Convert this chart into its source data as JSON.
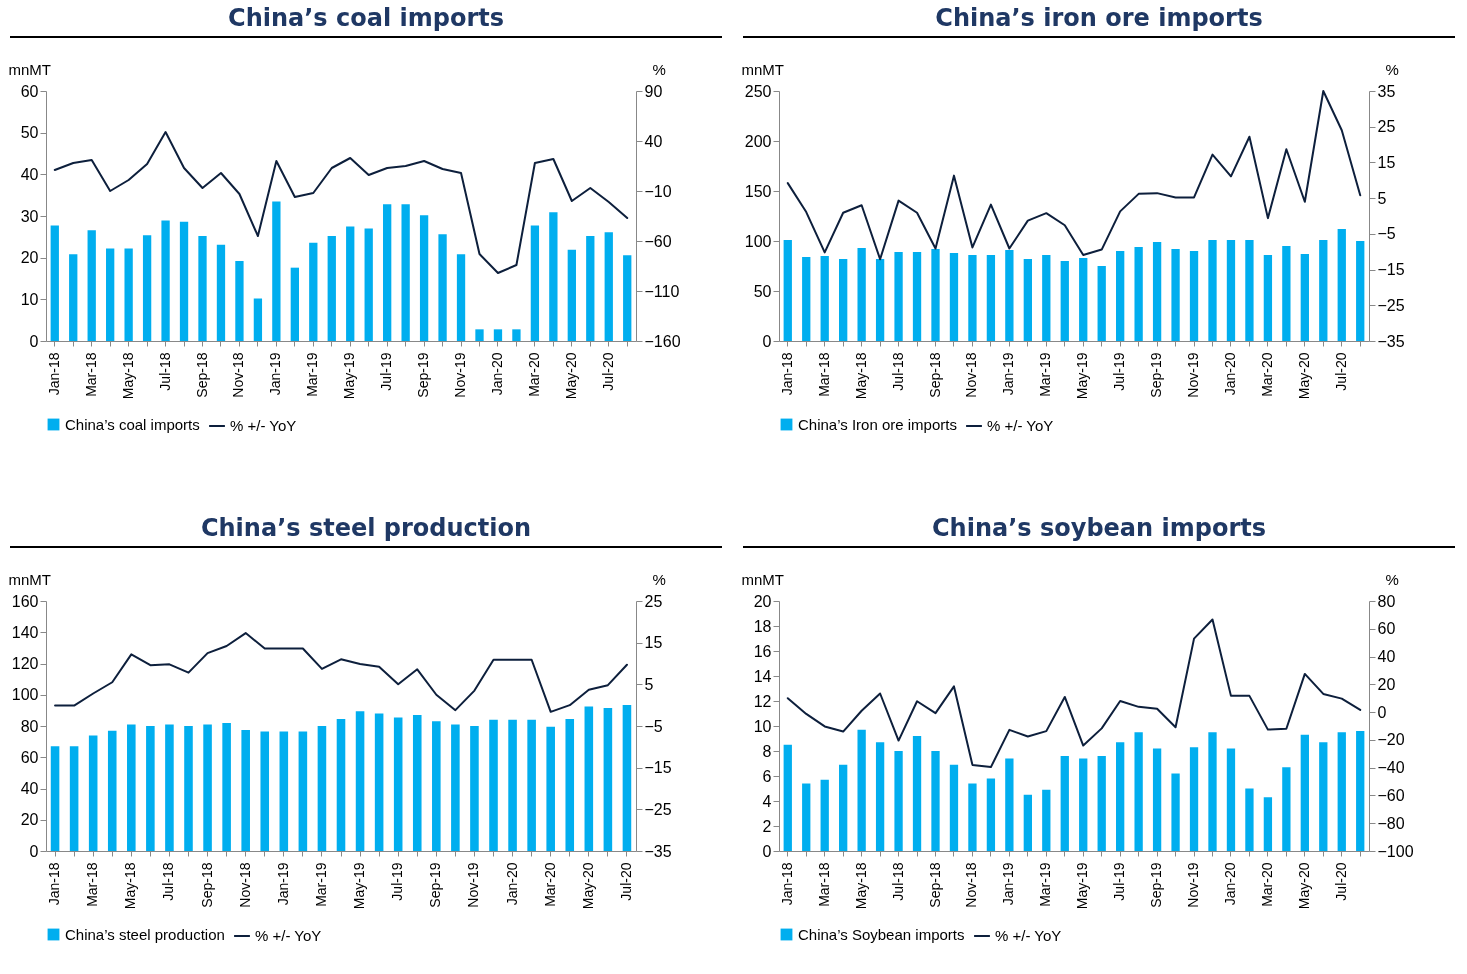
{
  "chart_data": [
    {
      "type": "bar",
      "title": "China’s coal imports",
      "ylabel": "mnMT",
      "y2label": "%",
      "legend": "bottom",
      "categories": [
        "Jan-18",
        null,
        "Mar-18",
        null,
        "May-18",
        null,
        "Jul-18",
        null,
        "Sep-18",
        null,
        "Nov-18",
        null,
        "Jan-19",
        null,
        "Mar-19",
        null,
        "May-19",
        null,
        "Jul-19",
        null,
        "Sep-19",
        null,
        "Nov-19",
        null,
        "Jan-20",
        null,
        "Mar-20",
        null,
        "May-20",
        null,
        "Jul-20",
        null
      ],
      "ylim": [
        0,
        60
      ],
      "yticks": [
        0,
        10,
        20,
        30,
        40,
        50,
        60
      ],
      "y2lim": [
        -160,
        90
      ],
      "y2ticks": [
        -160,
        -110,
        -60,
        -10,
        40,
        90
      ],
      "series": [
        {
          "name": "China’s coal imports",
          "color": "#00aeef",
          "values": [
            27.7,
            20.8,
            26.6,
            22.2,
            22.2,
            25.4,
            28.9,
            28.6,
            25.2,
            23.1,
            19.2,
            10.2,
            33.5,
            17.6,
            23.6,
            25.2,
            27.5,
            27.0,
            32.8,
            32.8,
            30.2,
            25.6,
            20.8,
            2.8,
            2.8,
            2.8,
            27.7,
            30.9,
            21.9,
            25.2,
            26.1,
            20.6
          ]
        },
        {
          "name": "% +/- YoY",
          "type": "line",
          "axis": "y2",
          "color": "#0d1f3c",
          "values": [
            11,
            18,
            21,
            -10,
            1,
            17,
            49,
            13,
            -7,
            8,
            -13,
            -55,
            20,
            -16,
            -12,
            13,
            23,
            6,
            13,
            15,
            20,
            12,
            8,
            -73,
            -92,
            -84,
            18,
            22,
            -20,
            -7,
            -21,
            -37
          ]
        }
      ]
    },
    {
      "type": "bar",
      "title": "China’s iron ore imports",
      "ylabel": "mnMT",
      "y2label": "%",
      "legend": "bottom",
      "categories": [
        "Jan-18",
        null,
        "Mar-18",
        null,
        "May-18",
        null,
        "Jul-18",
        null,
        "Sep-18",
        null,
        "Nov-18",
        null,
        "Jan-19",
        null,
        "Mar-19",
        null,
        "May-19",
        null,
        "Jul-19",
        null,
        "Sep-19",
        null,
        "Nov-19",
        null,
        "Jan-20",
        null,
        "Mar-20",
        null,
        "May-20",
        null,
        "Jul-20",
        null
      ],
      "ylim": [
        0,
        250
      ],
      "yticks": [
        0,
        50,
        100,
        150,
        200,
        250
      ],
      "y2lim": [
        -35,
        35
      ],
      "y2ticks": [
        -35,
        -25,
        -15,
        -5,
        5,
        15,
        25,
        35
      ],
      "series": [
        {
          "name": "China’s Iron ore imports",
          "color": "#00aeef",
          "values": [
            101,
            84,
            85,
            82,
            93,
            82,
            89,
            89,
            92,
            88,
            86,
            86,
            91,
            82,
            86,
            80,
            83,
            75,
            90,
            94,
            99,
            92,
            90,
            101,
            101,
            101,
            86,
            95,
            87,
            101,
            112,
            100
          ]
        },
        {
          "name": "% +/- YoY",
          "type": "line",
          "axis": "y2",
          "color": "#0d1f3c",
          "values": [
            9.2,
            1.1,
            -10.2,
            0.9,
            3,
            -12.1,
            4.3,
            0.9,
            -9.1,
            11.3,
            -8.8,
            3.2,
            -9.1,
            -1.3,
            0.8,
            -2.6,
            -10.9,
            -9.4,
            1.3,
            6.2,
            6.4,
            5.2,
            5.2,
            17.2,
            11.1,
            22.2,
            -0.6,
            18.7,
            4,
            35,
            24,
            5.8
          ]
        }
      ]
    },
    {
      "type": "bar",
      "title": "China’s steel production",
      "ylabel": "mnMT",
      "y2label": "%",
      "legend": "bottom",
      "categories": [
        "Jan-18",
        null,
        "Mar-18",
        null,
        "May-18",
        null,
        "Jul-18",
        null,
        "Sep-18",
        null,
        "Nov-18",
        null,
        "Jan-19",
        null,
        "Mar-19",
        null,
        "May-19",
        null,
        "Jul-19",
        null,
        "Sep-19",
        null,
        "Nov-19",
        null,
        "Jan-20",
        null,
        "Mar-20",
        null,
        "May-20",
        null,
        "Jul-20"
      ],
      "ylim": [
        0,
        160
      ],
      "yticks": [
        0,
        20,
        40,
        60,
        80,
        100,
        120,
        140,
        160
      ],
      "y2lim": [
        -35,
        25
      ],
      "y2ticks": [
        -35,
        -25,
        -15,
        -5,
        5,
        15,
        25
      ],
      "series": [
        {
          "name": "China’s steel production",
          "color": "#00aeef",
          "values": [
            67,
            67,
            74,
            77,
            81,
            80,
            81,
            80,
            81,
            82,
            77.5,
            76.5,
            76.5,
            76.5,
            80,
            84.5,
            89.5,
            88,
            85.5,
            87,
            83,
            81,
            80,
            84,
            84,
            84,
            79.5,
            84.5,
            92.5,
            91.5,
            93.5
          ]
        },
        {
          "name": "% +/- YoY",
          "type": "line",
          "axis": "y2",
          "color": "#0d1f3c",
          "values": [
            -0.1,
            -0.1,
            2.8,
            5.5,
            12.2,
            9.6,
            9.8,
            7.8,
            12.5,
            14.2,
            17.3,
            13.6,
            13.6,
            13.6,
            8.7,
            11,
            9.9,
            9.2,
            5,
            8.6,
            2.5,
            -1.2,
            3.5,
            10.9,
            10.9,
            10.9,
            -1.6,
            0,
            3.7,
            4.8,
            9.7
          ]
        }
      ]
    },
    {
      "type": "bar",
      "title": "China’s soybean imports",
      "ylabel": "mnMT",
      "y2label": "%",
      "legend": "bottom",
      "categories": [
        "Jan-18",
        null,
        "Mar-18",
        null,
        "May-18",
        null,
        "Jul-18",
        null,
        "Sep-18",
        null,
        "Nov-18",
        null,
        "Jan-19",
        null,
        "Mar-19",
        null,
        "May-19",
        null,
        "Jul-19",
        null,
        "Sep-19",
        null,
        "Nov-19",
        null,
        "Jan-20",
        null,
        "Mar-20",
        null,
        "May-20",
        null,
        "Jul-20",
        null
      ],
      "ylim": [
        0,
        20
      ],
      "yticks": [
        0,
        2,
        4,
        6,
        8,
        10,
        12,
        14,
        16,
        18,
        20
      ],
      "y2lim": [
        -100,
        80
      ],
      "y2ticks": [
        -100,
        -80,
        -60,
        -40,
        -20,
        0,
        20,
        40,
        60,
        80
      ],
      "series": [
        {
          "name": "China’s Soybean imports",
          "color": "#00aeef",
          "values": [
            8.5,
            5.4,
            5.7,
            6.9,
            9.7,
            8.7,
            8.0,
            9.2,
            8.0,
            6.9,
            5.4,
            5.8,
            7.4,
            4.5,
            4.9,
            7.6,
            7.4,
            7.6,
            8.7,
            9.5,
            8.2,
            6.2,
            8.3,
            9.5,
            8.2,
            5.0,
            4.3,
            6.7,
            9.3,
            8.7,
            9.5,
            9.6
          ]
        },
        {
          "name": "% +/- YoY",
          "type": "line",
          "axis": "y2",
          "color": "#0d1f3c",
          "values": [
            10,
            -1.3,
            -10.3,
            -14,
            1,
            13.4,
            -20.5,
            7.8,
            -0.7,
            18.5,
            -38,
            -39.6,
            -12.8,
            -17.6,
            -13.7,
            10.9,
            -24.1,
            -11.7,
            8,
            3.8,
            2.4,
            -10.9,
            52.9,
            66.7,
            11.7,
            11.7,
            -12.6,
            -12,
            27.5,
            13.1,
            9.7,
            1.6
          ]
        }
      ]
    }
  ]
}
